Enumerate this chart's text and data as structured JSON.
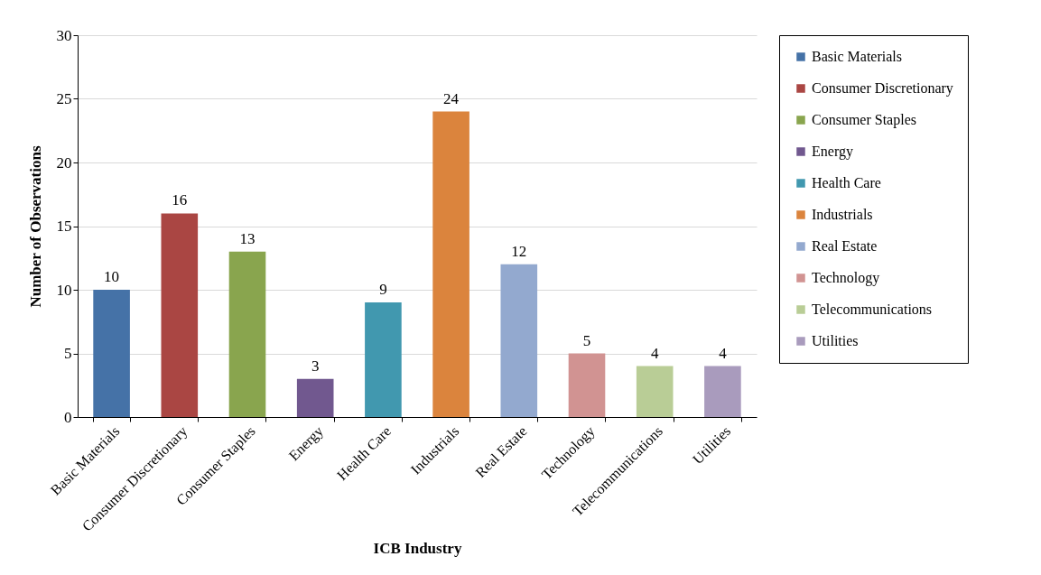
{
  "chart_data": {
    "type": "bar",
    "xlabel": "ICB Industry",
    "ylabel": "Number of Observations",
    "categories": [
      "Basic Materials",
      "Consumer Discretionary",
      "Consumer Staples",
      "Energy",
      "Health Care",
      "Industrials",
      "Real Estate",
      "Technology",
      "Telecommunications",
      "Utilities"
    ],
    "series": [
      {
        "name": "Basic Materials",
        "color": "#4572a7",
        "values": [
          10,
          null,
          null,
          null,
          null,
          null,
          null,
          null,
          null,
          null
        ]
      },
      {
        "name": "Consumer Discretionary",
        "color": "#aa4643",
        "values": [
          null,
          16,
          null,
          null,
          null,
          null,
          null,
          null,
          null,
          null
        ]
      },
      {
        "name": "Consumer Staples",
        "color": "#89a54e",
        "values": [
          null,
          null,
          13,
          null,
          null,
          null,
          null,
          null,
          null,
          null
        ]
      },
      {
        "name": "Energy",
        "color": "#71588f",
        "values": [
          null,
          null,
          null,
          3,
          null,
          null,
          null,
          null,
          null,
          null
        ]
      },
      {
        "name": "Health Care",
        "color": "#4198af",
        "values": [
          null,
          null,
          null,
          null,
          9,
          null,
          null,
          null,
          null,
          null
        ]
      },
      {
        "name": "Industrials",
        "color": "#db843d",
        "values": [
          null,
          null,
          null,
          null,
          null,
          24,
          null,
          null,
          null,
          null
        ]
      },
      {
        "name": "Real Estate",
        "color": "#93a9cf",
        "values": [
          null,
          null,
          null,
          null,
          null,
          null,
          12,
          null,
          null,
          null
        ]
      },
      {
        "name": "Technology",
        "color": "#d19392",
        "values": [
          null,
          null,
          null,
          null,
          null,
          null,
          null,
          5,
          null,
          null
        ]
      },
      {
        "name": "Telecommunications",
        "color": "#b9cd96",
        "values": [
          null,
          null,
          null,
          null,
          null,
          null,
          null,
          null,
          4,
          null
        ]
      },
      {
        "name": "Utilities",
        "color": "#a99bbd",
        "values": [
          null,
          null,
          null,
          null,
          null,
          null,
          null,
          null,
          null,
          4
        ]
      }
    ],
    "ylim": [
      0,
      30
    ],
    "yticks": [
      0,
      5,
      10,
      15,
      20,
      25,
      30
    ],
    "grid": "y",
    "legend": "right",
    "data_labels": true
  }
}
